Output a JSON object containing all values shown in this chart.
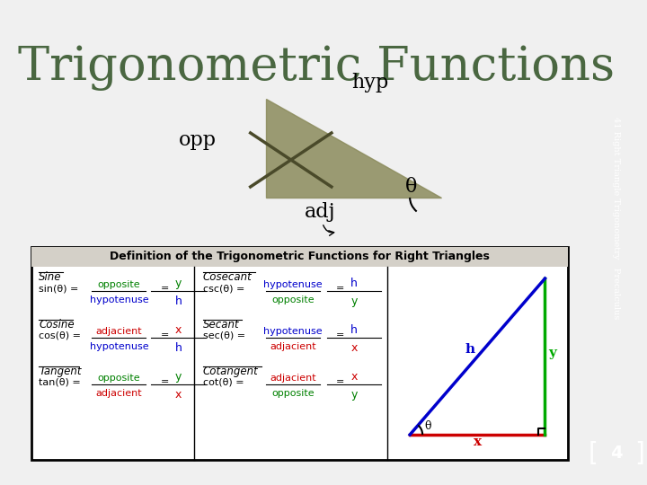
{
  "title": "Trigonometric Functions",
  "title_color": "#4a6741",
  "title_fontsize": 38,
  "bg_color": "#f0f0f0",
  "sidebar_color": "#6b6b4e",
  "sidebar_text": "41 Right Triangle Trigonometry   Precalculus",
  "page_number": "4",
  "triangle_fill": "#8b8b5c",
  "label_hyp": "hyp",
  "label_opp": "opp",
  "label_adj": "adj",
  "label_theta": "θ",
  "table_title": "Definition of the Trigonometric Functions for Right Triangles",
  "green": "#008000",
  "blue": "#0000cc",
  "red": "#cc0000",
  "black": "#000000"
}
